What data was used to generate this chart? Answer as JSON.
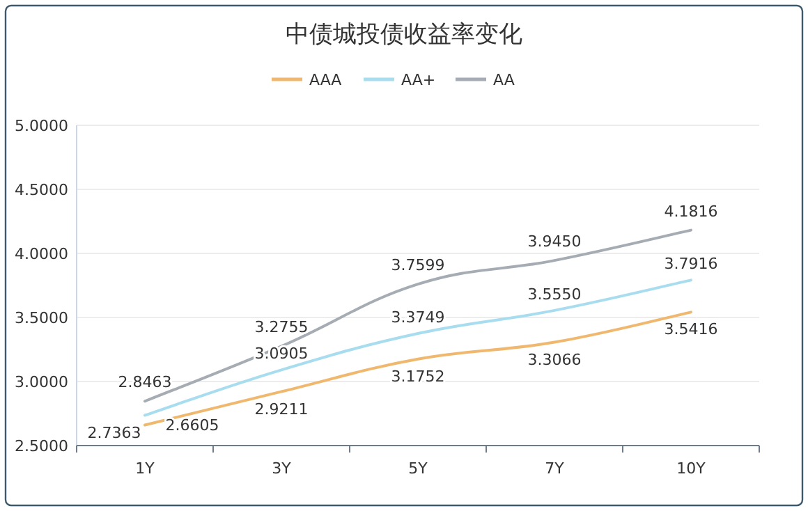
{
  "chart_data": {
    "type": "line",
    "title": "中债城投债收益率变化",
    "categories": [
      "1Y",
      "3Y",
      "5Y",
      "7Y",
      "10Y"
    ],
    "series": [
      {
        "name": "AAA",
        "color": "#f0b86e",
        "values": [
          2.6605,
          2.9211,
          3.1752,
          3.3066,
          3.5416
        ],
        "value_labels": [
          "2.6605",
          "2.9211",
          "3.1752",
          "3.3066",
          "3.5416"
        ]
      },
      {
        "name": "AA+",
        "color": "#a8dcef",
        "values": [
          2.7363,
          3.0905,
          3.3749,
          3.555,
          3.7916
        ],
        "value_labels": [
          "2.7363",
          "3.0905",
          "3.3749",
          "3.5550",
          "3.7916"
        ]
      },
      {
        "name": "AA",
        "color": "#a6acb3",
        "values": [
          2.8463,
          3.2755,
          3.7599,
          3.945,
          4.1816
        ],
        "value_labels": [
          "2.8463",
          "3.2755",
          "3.7599",
          "3.9450",
          "4.1816"
        ]
      }
    ],
    "ylim": [
      2.5,
      5
    ],
    "yticks": [
      {
        "value": 2.5,
        "label": "2.5000"
      },
      {
        "value": 3,
        "label": "3.0000"
      },
      {
        "value": 3.5,
        "label": "3.5000"
      },
      {
        "value": 4,
        "label": "4.0000"
      },
      {
        "value": 4.5,
        "label": "4.5000"
      },
      {
        "value": 5,
        "label": "5.0000"
      }
    ],
    "grid": "y",
    "legend": "top",
    "marker": "none",
    "line_style": "solid"
  }
}
